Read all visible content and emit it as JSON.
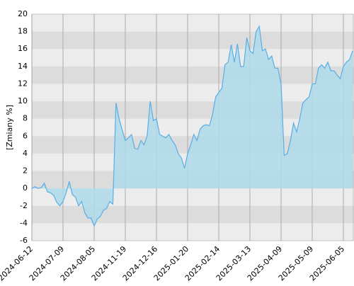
{
  "chart_data": {
    "type": "area",
    "y_label": "[Zmiany %]",
    "categories": [
      "2024-06-12",
      null,
      null,
      null,
      null,
      null,
      null,
      null,
      null,
      null,
      "2024-07-09",
      null,
      null,
      null,
      null,
      null,
      null,
      null,
      null,
      null,
      "2024-08-05",
      null,
      null,
      null,
      null,
      null,
      null,
      null,
      null,
      null,
      "2024-11-19",
      null,
      null,
      null,
      null,
      null,
      null,
      null,
      null,
      null,
      "2024-12-16",
      null,
      null,
      null,
      null,
      null,
      null,
      null,
      null,
      null,
      "2025-01-20",
      null,
      null,
      null,
      null,
      null,
      null,
      null,
      null,
      null,
      "2025-02-14",
      null,
      null,
      null,
      null,
      null,
      null,
      null,
      null,
      null,
      "2025-03-13",
      null,
      null,
      null,
      null,
      null,
      null,
      null,
      null,
      null,
      "2025-04-09",
      null,
      null,
      null,
      null,
      null,
      null,
      null,
      null,
      null,
      "2025-05-09",
      null,
      null,
      null,
      null,
      null,
      null,
      null,
      null,
      null,
      "2025-06-05",
      null,
      null,
      null
    ],
    "series": [
      {
        "color": "#5aaee6",
        "fill": "#aed9ea",
        "values": [
          0,
          0.2,
          0,
          0.1,
          0.6,
          -0.4,
          -0.5,
          -0.8,
          -1.6,
          -2.0,
          -1.5,
          -0.5,
          0.8,
          -0.7,
          -1.0,
          -2.0,
          -1.5,
          -2.8,
          -3.4,
          -3.4,
          -4.3,
          -3.5,
          -3.2,
          -2.5,
          -2.3,
          -1.5,
          -1.8,
          9.8,
          8.0,
          6.7,
          5.5,
          5.8,
          6.2,
          4.6,
          4.5,
          5.5,
          5.0,
          6.0,
          10.0,
          7.8,
          8.0,
          6.2,
          6.0,
          5.8,
          6.2,
          5.5,
          5.0,
          4.0,
          3.5,
          2.3,
          4.0,
          5.0,
          6.2,
          5.5,
          6.8,
          7.2,
          7.3,
          7.2,
          8.5,
          10.5,
          11.0,
          11.5,
          14.2,
          14.5,
          16.5,
          14.5,
          16.6,
          14.0,
          14.0,
          17.3,
          15.8,
          15.5,
          18.0,
          18.6,
          15.8,
          16.0,
          14.8,
          15.2,
          13.8,
          13.8,
          12.0,
          3.8,
          4.0,
          5.5,
          7.5,
          6.5,
          8.0,
          9.8,
          10.2,
          10.5,
          12.0,
          12.0,
          13.8,
          14.2,
          13.8,
          14.5,
          13.5,
          13.5,
          13.0,
          12.6,
          14.0,
          14.5,
          14.8,
          15.8
        ]
      }
    ],
    "ylim": [
      -6,
      20
    ],
    "yticks": [
      -6,
      -4,
      -2,
      0,
      2,
      4,
      6,
      8,
      10,
      12,
      14,
      16,
      18,
      20
    ],
    "grid": true
  }
}
